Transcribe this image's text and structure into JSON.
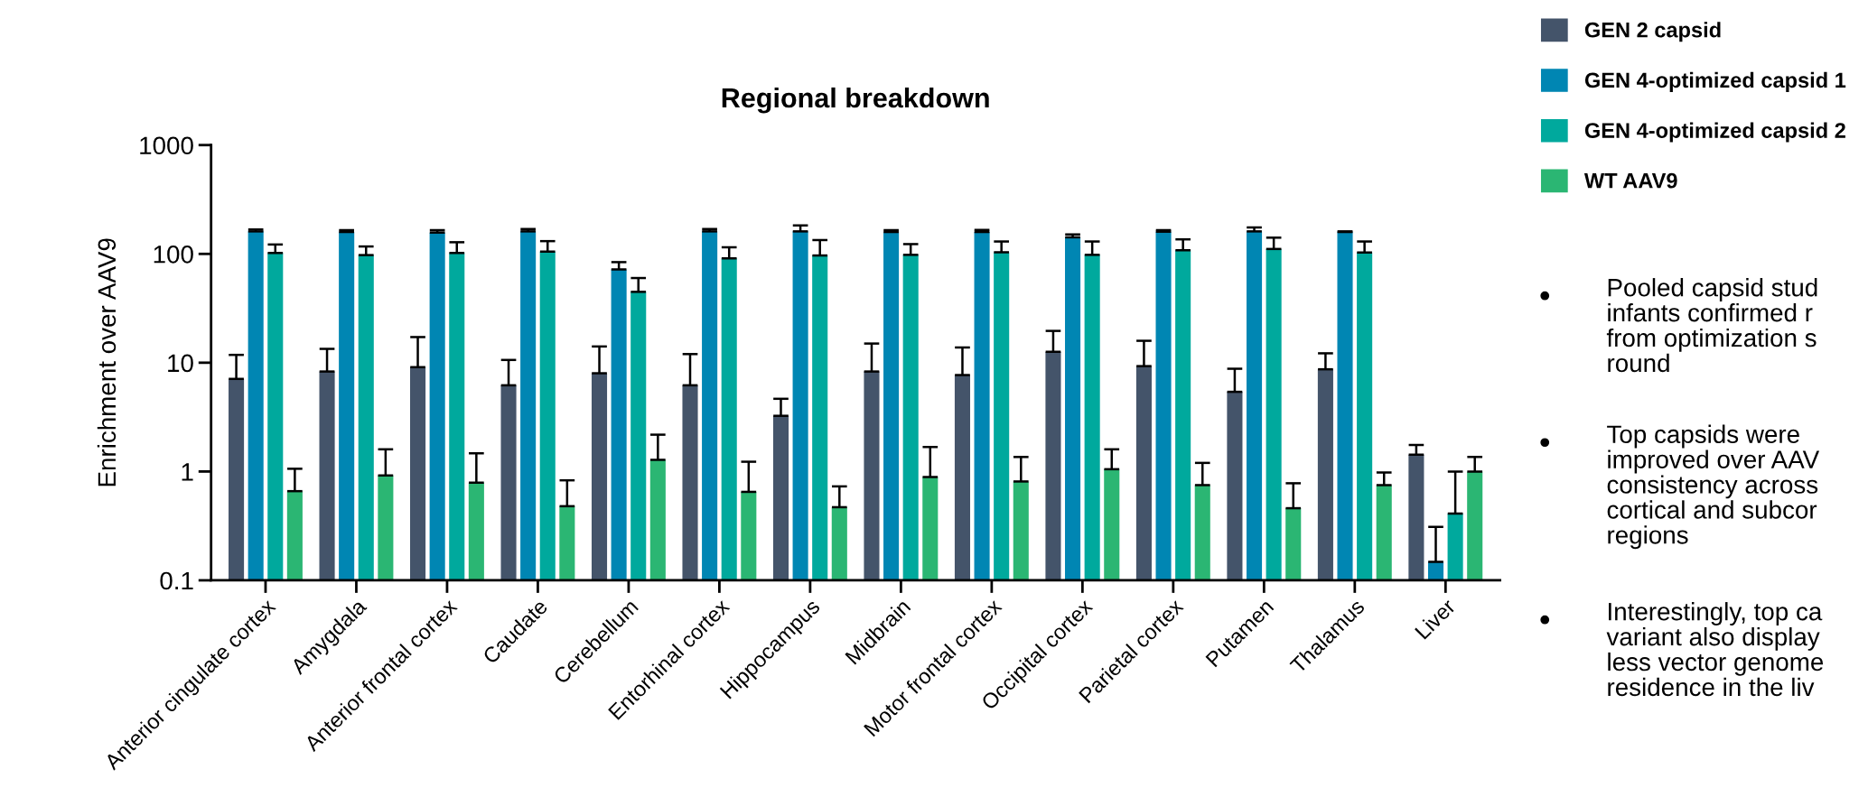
{
  "chart_data": {
    "type": "bar",
    "title": "Regional breakdown",
    "ylabel": "Enrichment over AAV9",
    "categories": [
      "Anterior cingulate cortex",
      "Amygdala",
      "Anterior frontal cortex",
      "Caudate",
      "Cerebellum",
      "Entorhinal cortex",
      "Hippocampus",
      "Midbrain",
      "Motor frontal cortex",
      "Occipital cortex",
      "Parietal cortex",
      "Putamen",
      "Thalamus",
      "Liver"
    ],
    "series": [
      {
        "name": "GEN 2 capsid",
        "color": "#44546a",
        "values": [
          7.1,
          8.3,
          9.1,
          6.2,
          8.0,
          6.2,
          3.25,
          8.3,
          7.7,
          12.6,
          9.3,
          5.4,
          8.7,
          1.43
        ],
        "errors": [
          [
            7.1,
            11.8
          ],
          [
            8.3,
            13.4
          ],
          [
            9.1,
            17.2
          ],
          [
            6.2,
            10.6
          ],
          [
            8.0,
            14.1
          ],
          [
            6.2,
            12.0
          ],
          [
            3.25,
            4.66
          ],
          [
            8.3,
            15.0
          ],
          [
            7.7,
            13.8
          ],
          [
            12.6,
            19.6
          ],
          [
            9.3,
            15.9
          ],
          [
            5.4,
            8.8
          ],
          [
            8.7,
            12.2
          ],
          [
            1.43,
            1.75
          ]
        ]
      },
      {
        "name": "GEN 4-optimized capsid 1",
        "color": "#0086b3",
        "values": [
          161,
          159,
          157,
          161,
          72,
          161,
          161,
          159,
          159,
          142,
          160,
          161,
          159,
          0.148
        ],
        "errors": [
          [
            161,
            168
          ],
          [
            159,
            165
          ],
          [
            157,
            165
          ],
          [
            161,
            169
          ],
          [
            72,
            84
          ],
          [
            161,
            169
          ],
          [
            161,
            183
          ],
          [
            159,
            165
          ],
          [
            159,
            166
          ],
          [
            142,
            151
          ],
          [
            160,
            165
          ],
          [
            161,
            175
          ],
          [
            159,
            161
          ],
          [
            0.148,
            0.31
          ]
        ]
      },
      {
        "name": "GEN 4-optimized capsid 2",
        "color": "#00a99d",
        "values": [
          102,
          97.5,
          102,
          105,
          44.8,
          91,
          96.7,
          98,
          103.5,
          98,
          108,
          111,
          103,
          0.41
        ],
        "errors": [
          [
            102,
            122
          ],
          [
            97.5,
            117
          ],
          [
            102,
            128
          ],
          [
            105,
            131
          ],
          [
            44.8,
            60
          ],
          [
            91,
            115
          ],
          [
            96.7,
            134
          ],
          [
            98,
            123
          ],
          [
            103.5,
            130
          ],
          [
            98,
            130
          ],
          [
            108,
            136
          ],
          [
            111,
            141
          ],
          [
            103,
            130
          ],
          [
            0.41,
            1.0
          ]
        ]
      },
      {
        "name": "WT AAV9",
        "color": "#2bb673",
        "values": [
          0.66,
          0.92,
          0.79,
          0.48,
          1.28,
          0.65,
          0.47,
          0.89,
          0.81,
          1.05,
          0.75,
          0.46,
          0.75,
          1.0
        ],
        "errors": [
          [
            0.66,
            1.06
          ],
          [
            0.92,
            1.6
          ],
          [
            0.79,
            1.47
          ],
          [
            0.48,
            0.83
          ],
          [
            1.28,
            2.18
          ],
          [
            0.65,
            1.23
          ],
          [
            0.47,
            0.73
          ],
          [
            0.89,
            1.68
          ],
          [
            0.81,
            1.36
          ],
          [
            1.05,
            1.6
          ],
          [
            0.75,
            1.2
          ],
          [
            0.46,
            0.78
          ],
          [
            0.75,
            0.98
          ],
          [
            1.0,
            1.36
          ]
        ]
      }
    ],
    "log": true,
    "ylim": [
      0.1,
      1000
    ],
    "yticks": [
      {
        "value": 0.1,
        "label": "0.1"
      },
      {
        "value": 1,
        "label": "1"
      },
      {
        "value": 10,
        "label": "10"
      },
      {
        "value": 100,
        "label": "100"
      },
      {
        "value": 1000,
        "label": "1000"
      }
    ],
    "grid": false,
    "legend": "right",
    "annotations": [
      "Pooled capsid stud\ninfants confirmed r\nfrom optimization s\nround",
      "Top capsids were\nimproved over AAV\nconsistency across\ncortical and subcor\nregions",
      "Interestingly, top ca\nvariant also display\nless vector genome\nresidence in the liv"
    ]
  }
}
